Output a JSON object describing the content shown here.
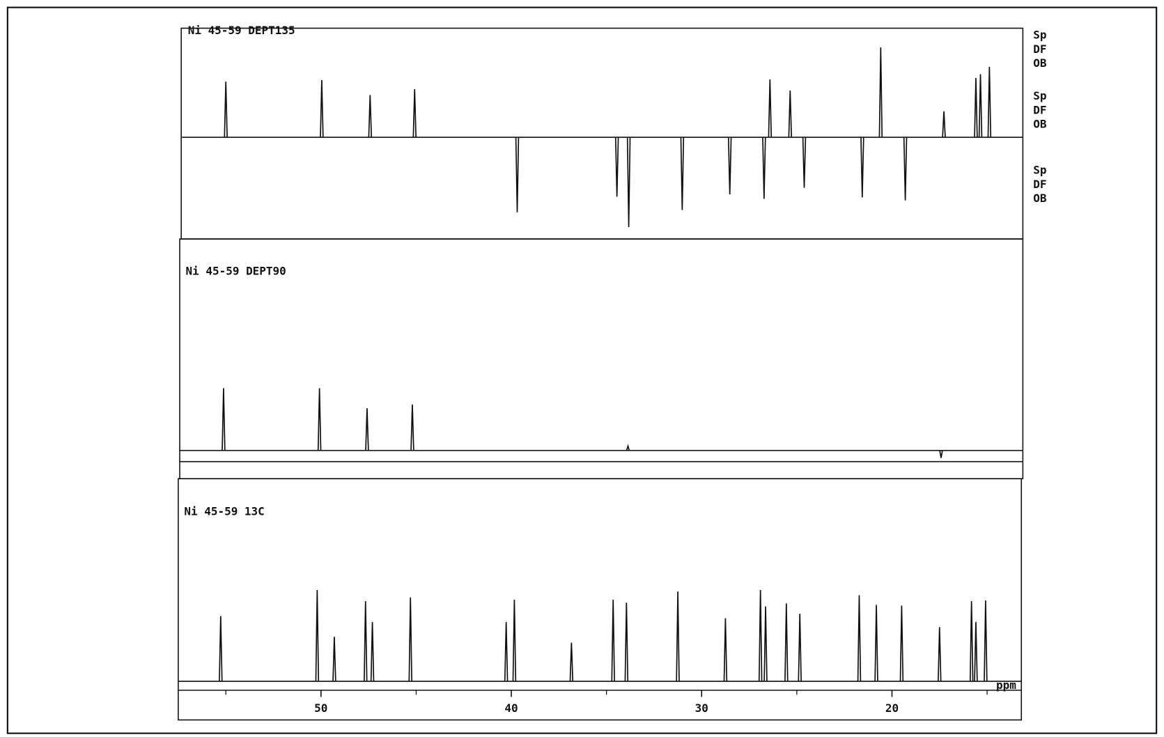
{
  "chart_data": {
    "type": "spectrum",
    "x_label": "ppm",
    "xlim": [
      57.5,
      13.2
    ],
    "xticks": [
      50,
      40,
      30,
      20
    ],
    "xminor_ticks": [
      55,
      45,
      35,
      25,
      15
    ],
    "color": "#111111",
    "side_labels": [
      [
        "Sp",
        "DF",
        "OB"
      ],
      [
        "Sp",
        "DF",
        "OB"
      ],
      [
        "Sp",
        "DF",
        "OB"
      ]
    ],
    "series": [
      {
        "name": "Ni 45-59 DEPT135",
        "x": [
          55.0,
          49.96,
          47.42,
          45.08,
          39.69,
          34.45,
          33.83,
          31.02,
          28.52,
          26.72,
          26.41,
          25.35,
          24.61,
          21.56,
          20.59,
          19.3,
          17.27,
          15.59,
          15.35,
          14.88
        ],
        "values": [
          75,
          77,
          57,
          65,
          -101,
          -80,
          -121,
          -98,
          -77,
          -83,
          78,
          63,
          -68,
          -81,
          121,
          -85,
          35,
          80,
          85,
          95
        ]
      },
      {
        "name": "Ni 45-59 DEPT90",
        "x": [
          55.12,
          50.08,
          47.58,
          45.2,
          33.87,
          17.42
        ],
        "values": [
          84,
          84,
          57,
          62,
          6,
          -10
        ]
      },
      {
        "name": "Ni 45-59 13C",
        "x": [
          55.27,
          50.2,
          49.3,
          47.66,
          47.3,
          45.3,
          40.27,
          39.84,
          36.84,
          34.65,
          33.95,
          31.25,
          28.75,
          26.91,
          26.64,
          25.55,
          24.84,
          21.72,
          20.82,
          19.49,
          17.5,
          15.82,
          15.59,
          15.08
        ],
        "values": [
          88,
          123,
          60,
          108,
          80,
          113,
          80,
          110,
          52,
          110,
          106,
          121,
          85,
          123,
          101,
          105,
          91,
          116,
          103,
          102,
          73,
          108,
          80,
          109
        ]
      }
    ]
  }
}
